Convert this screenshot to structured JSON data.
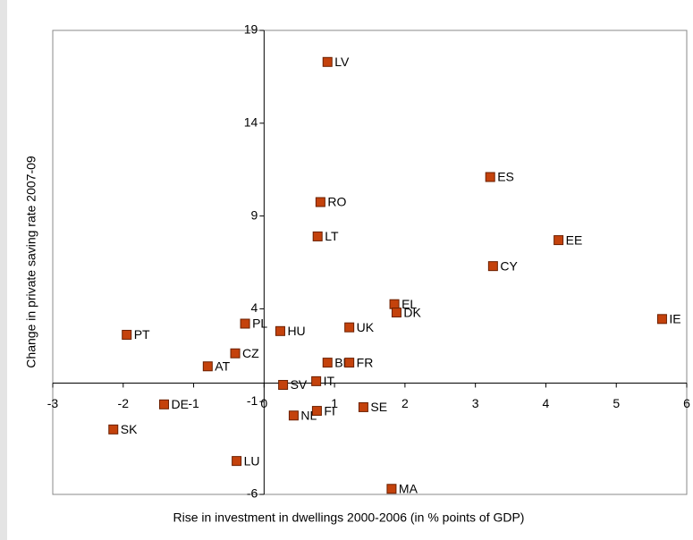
{
  "chart_data": {
    "type": "scatter",
    "x_label": "Rise in investment in dwellings 2000-2006 (in % points of GDP)",
    "y_label": "Change in private saving rate 2007-09",
    "color": "#c4420c",
    "point_labels": [
      "LV",
      "ES",
      "RO",
      "LT",
      "EE",
      "CY",
      "EL",
      "DK",
      "IE",
      "PL",
      "HU",
      "UK",
      "PT",
      "CZ",
      "AT",
      "BE",
      "FR",
      "IT",
      "SV",
      "DE",
      "FI",
      "SE",
      "NL",
      "SK",
      "LU",
      "MA"
    ],
    "x": [
      0.9,
      3.21,
      0.8,
      0.76,
      4.18,
      3.25,
      1.85,
      1.88,
      5.65,
      -0.27,
      0.23,
      1.21,
      -1.95,
      -0.41,
      -0.8,
      0.9,
      1.21,
      0.74,
      0.27,
      -1.42,
      0.75,
      1.41,
      0.42,
      -2.14,
      -0.39,
      1.81
    ],
    "values": [
      17.3,
      11.1,
      9.75,
      7.9,
      7.7,
      6.3,
      4.25,
      3.8,
      3.45,
      3.2,
      2.8,
      3.0,
      2.6,
      1.6,
      0.9,
      1.1,
      1.1,
      0.1,
      -0.1,
      -1.15,
      -1.5,
      -1.3,
      -1.75,
      -2.5,
      -4.2,
      -5.7
    ],
    "xlim": [
      -3,
      6
    ],
    "xticks": [
      -3,
      -2,
      -1,
      0,
      1,
      2,
      3,
      4,
      5,
      6
    ],
    "ylim": [
      -6,
      19
    ],
    "yticks": [
      -6,
      -1,
      4,
      9,
      14,
      19
    ]
  }
}
